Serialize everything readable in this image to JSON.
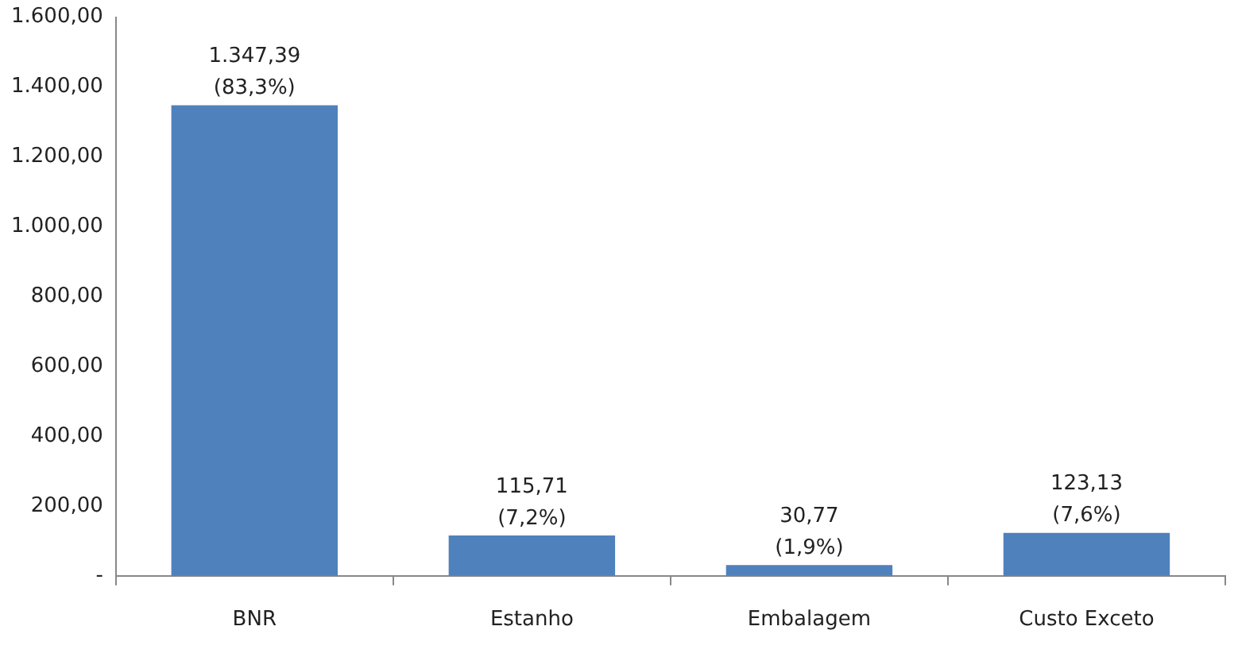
{
  "chart_data": {
    "type": "bar",
    "categories": [
      "BNR",
      "Estanho",
      "Embalagem",
      "Custo Exceto"
    ],
    "values": [
      1347.39,
      115.71,
      30.77,
      123.13
    ],
    "color": "#4f81bd",
    "value_labels": [
      "1.347,39\n(83,3%)",
      "115,71\n(7,2%)",
      "30,77\n(1,9%)",
      "123,13\n(7,6%)"
    ],
    "ylim": [
      0,
      1600
    ],
    "yticks": [
      {
        "value": 0,
        "label": "-"
      },
      {
        "value": 200,
        "label": "200,00"
      },
      {
        "value": 400,
        "label": "400,00"
      },
      {
        "value": 600,
        "label": "600,00"
      },
      {
        "value": 800,
        "label": "800,00"
      },
      {
        "value": 1000,
        "label": "1.000,00"
      },
      {
        "value": 1200,
        "label": "1.200,00"
      },
      {
        "value": 1400,
        "label": "1.400,00"
      },
      {
        "value": 1600,
        "label": "1.600,00"
      }
    ],
    "grid": false,
    "legend": false
  }
}
